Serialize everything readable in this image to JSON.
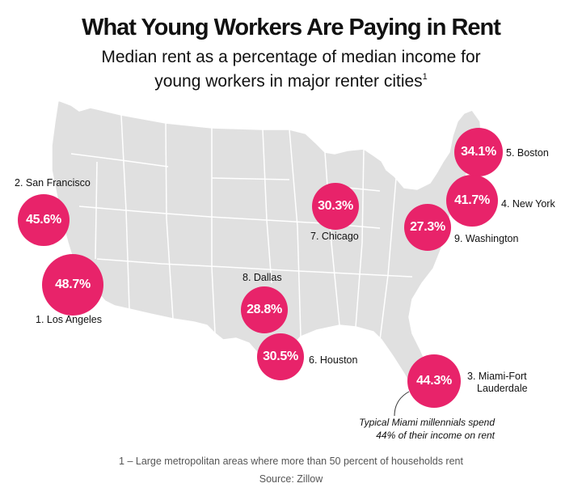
{
  "title": "What Young Workers Are Paying in Rent",
  "subtitle_line1": "Median rent as a percentage of median income for",
  "subtitle_line2": "young workers in major renter cities",
  "subtitle_sup": "1",
  "accent_color": "#e8236a",
  "map_fill": "#e0e0e0",
  "cities": [
    {
      "rank": 1,
      "label": "1. Los Angeles",
      "value": "48.7%"
    },
    {
      "rank": 2,
      "label": "2. San Francisco",
      "value": "45.6%"
    },
    {
      "rank": 3,
      "label_line1": "3. Miami-Fort",
      "label_line2": "Lauderdale",
      "value": "44.3%"
    },
    {
      "rank": 4,
      "label": "4. New York",
      "value": "41.7%"
    },
    {
      "rank": 5,
      "label": "5. Boston",
      "value": "34.1%"
    },
    {
      "rank": 6,
      "label": "6. Houston",
      "value": "30.5%"
    },
    {
      "rank": 7,
      "label": "7. Chicago",
      "value": "30.3%"
    },
    {
      "rank": 8,
      "label": "8. Dallas",
      "value": "28.8%"
    },
    {
      "rank": 9,
      "label": "9. Washington",
      "value": "27.3%"
    }
  ],
  "annotation_line1": "Typical Miami millennials spend",
  "annotation_line2": "44% of their income on rent",
  "footnote": "1 – Large metropolitan areas where more than 50 percent of households rent",
  "source": "Source: Zillow"
}
